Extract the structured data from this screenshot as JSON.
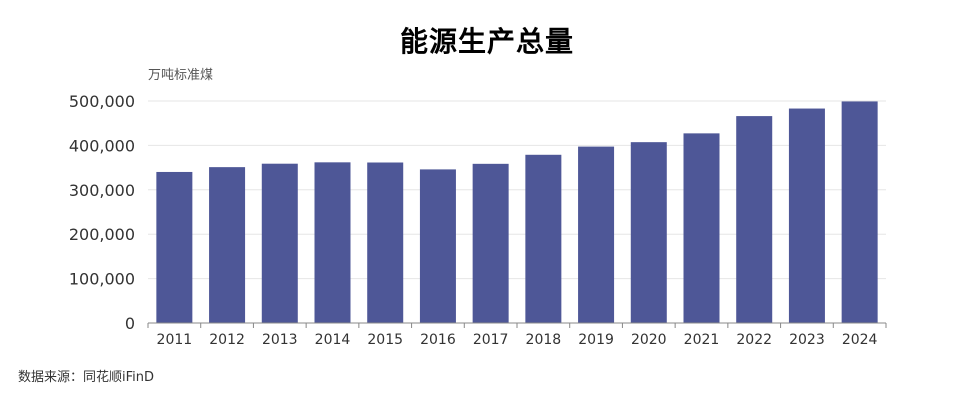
{
  "chart_data": {
    "type": "bar",
    "title": "能源生产总量",
    "unit_label": "万吨标准煤",
    "categories": [
      "2011",
      "2012",
      "2013",
      "2014",
      "2015",
      "2016",
      "2017",
      "2018",
      "2019",
      "2020",
      "2021",
      "2022",
      "2023",
      "2024"
    ],
    "values": [
      340178,
      351041,
      358784,
      361866,
      361476,
      345954,
      358500,
      378859,
      397317,
      407295,
      427115,
      466000,
      483000,
      499000
    ],
    "ylim": [
      0,
      500000
    ],
    "yticks": [
      0,
      100000,
      200000,
      300000,
      400000,
      500000
    ],
    "ytick_labels": [
      "0",
      "100,000",
      "200,000",
      "300,000",
      "400,000",
      "500,000"
    ],
    "grid": true,
    "bar_color": "#4e5797"
  },
  "source_note": "数据来源：同花顺iFinD"
}
